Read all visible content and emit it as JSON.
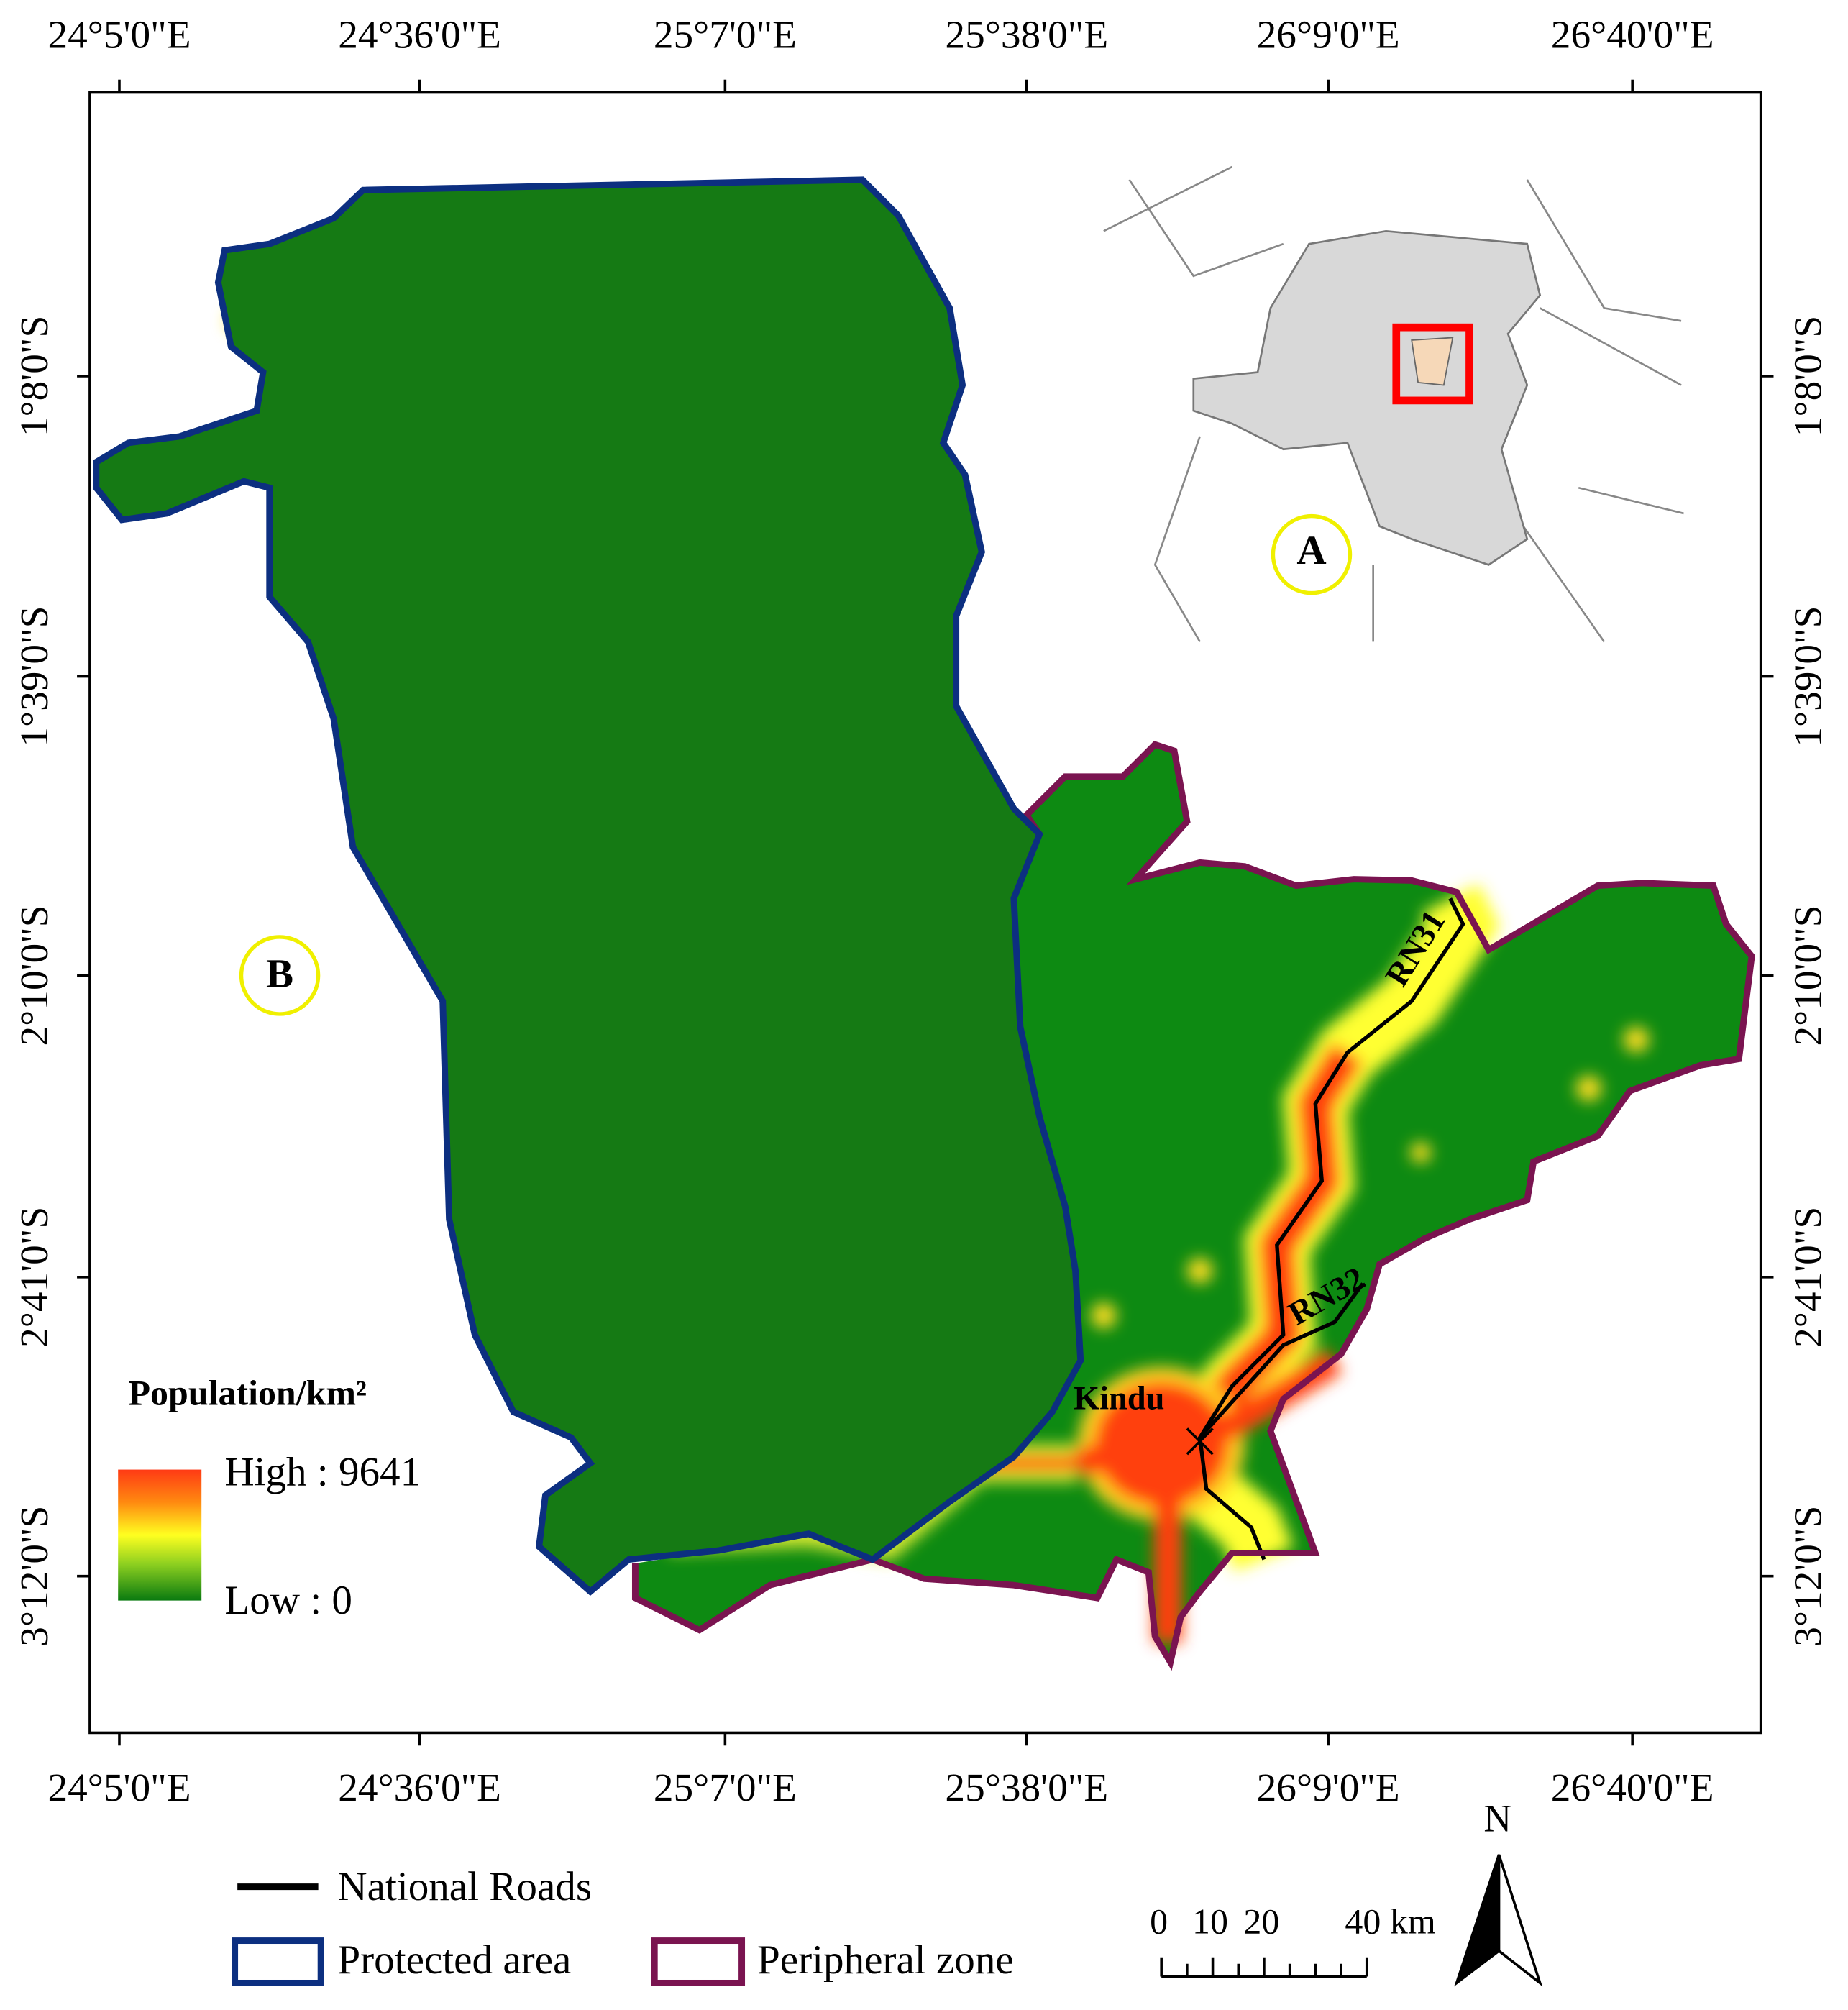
{
  "graticule": {
    "longitudes": [
      "24°5'0\"E",
      "24°36'0\"E",
      "25°7'0\"E",
      "25°38'0\"E",
      "26°9'0\"E",
      "26°40'0\"E"
    ],
    "latitudes": [
      "1°8'0\"S",
      "1°39'0\"S",
      "2°10'0\"S",
      "2°41'0\"S",
      "3°12'0\"S"
    ]
  },
  "places": {
    "city": "Kindu",
    "road_1": "RN31",
    "road_2": "RN32",
    "inset": "A",
    "main": "B"
  },
  "population_legend": {
    "title": "Population/km²",
    "high": "High : 9641",
    "low": "Low : 0"
  },
  "legend": {
    "roads": "National Roads",
    "protected": "Protected area",
    "peripheral": "Peripheral zone"
  },
  "scale_bar": {
    "labels": [
      "0",
      "10",
      "20",
      "40 km"
    ]
  },
  "north": "N"
}
